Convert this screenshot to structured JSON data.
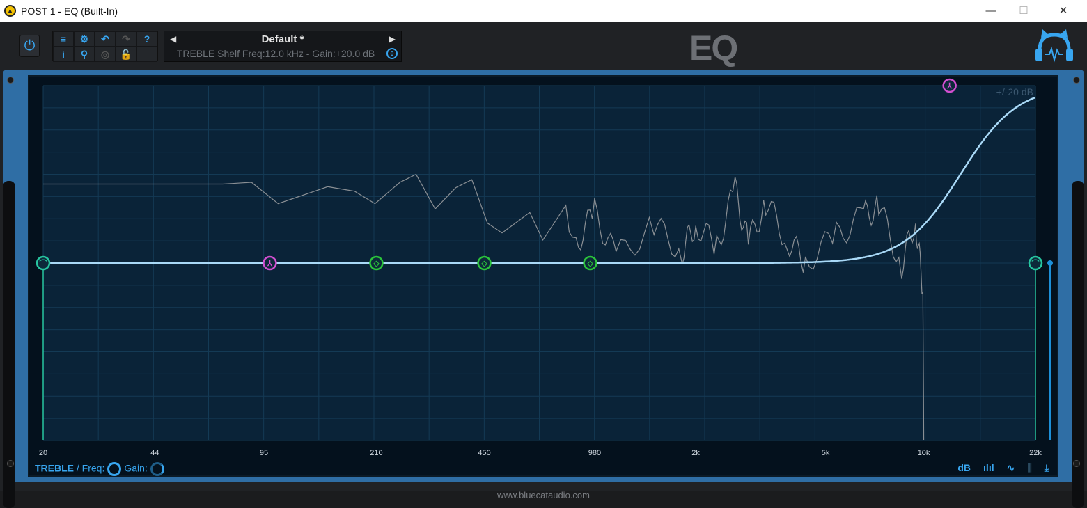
{
  "window": {
    "title": "POST 1 - EQ (Built-In)",
    "minimize": "—",
    "maximize": "☐",
    "close": "✕"
  },
  "toolbar": {
    "power_icon": "power-icon",
    "buttons": [
      {
        "name": "menu-icon",
        "glyph": "≡"
      },
      {
        "name": "settings-gear-icon",
        "glyph": "⚙"
      },
      {
        "name": "undo-icon",
        "glyph": "↶"
      },
      {
        "name": "redo-icon",
        "glyph": "↷"
      },
      {
        "name": "help-icon",
        "glyph": "?"
      },
      {
        "name": "info-icon",
        "glyph": "i"
      },
      {
        "name": "zoom-search-icon",
        "glyph": "⚲"
      },
      {
        "name": "target-icon",
        "glyph": "◎"
      },
      {
        "name": "lock-icon",
        "glyph": "🔓"
      },
      {
        "name": "empty",
        "glyph": ""
      }
    ]
  },
  "preset": {
    "name": "Default *",
    "prev": "◀",
    "next": "▶",
    "info": "TREBLE Shelf Freq:12.0 kHz - Gain:+20.0 dB",
    "info_icon": "0"
  },
  "logo": {
    "text": "EQ"
  },
  "graph": {
    "db_range_label": "+/-20 dB",
    "db_range": 20,
    "freq_range": [
      20,
      22000
    ],
    "x_ticks": [
      "20",
      "44",
      "95",
      "210",
      "450",
      "980",
      "2k",
      "5k",
      "10k",
      "22k"
    ],
    "x_tick_values": [
      20,
      44,
      95,
      210,
      450,
      980,
      2000,
      5000,
      10000,
      22000
    ],
    "colors": {
      "curve": "#a9d9f7",
      "spectrum": "#8a8f94",
      "lowcut": "#27c6a0",
      "bell_magenta": "#d24fd0",
      "bell_green": "#2bc43b",
      "grid": "#143a55"
    },
    "bands": [
      {
        "name": "lowcut",
        "freq": 20,
        "gain": 0,
        "color": "#27c6a0"
      },
      {
        "name": "bass",
        "freq": 99,
        "gain": 0,
        "color": "#d24fd0"
      },
      {
        "name": "band-2",
        "freq": 210,
        "gain": 0,
        "color": "#2bc43b"
      },
      {
        "name": "band-3",
        "freq": 450,
        "gain": 0,
        "color": "#2bc43b"
      },
      {
        "name": "band-4",
        "freq": 950,
        "gain": 0,
        "color": "#2bc43b"
      },
      {
        "name": "treble",
        "freq": 12000,
        "gain": 20,
        "color": "#d24fd0"
      },
      {
        "name": "highcut",
        "freq": 22000,
        "gain": 0,
        "color": "#27c6a0"
      }
    ],
    "spectrum": [
      [
        20,
        8.9
      ],
      [
        71,
        8.9
      ],
      [
        87,
        9.1
      ],
      [
        105,
        6.7
      ],
      [
        149,
        8.6
      ],
      [
        180,
        8.1
      ],
      [
        208,
        6.7
      ],
      [
        248,
        9.1
      ],
      [
        278,
        10
      ],
      [
        318,
        6.1
      ],
      [
        368,
        8.5
      ],
      [
        412,
        9.4
      ],
      [
        460,
        4.5
      ],
      [
        510,
        3.4
      ],
      [
        620,
        5.7
      ],
      [
        680,
        2.6
      ],
      [
        800,
        6.5
      ],
      [
        860,
        2.2
      ],
      [
        980,
        5.7
      ],
      [
        1140,
        0.6
      ],
      [
        1490,
        4.2
      ],
      [
        1820,
        1.4
      ],
      [
        2000,
        4.5
      ],
      [
        2320,
        1.8
      ],
      [
        2640,
        8.3
      ],
      [
        2900,
        2.2
      ],
      [
        3280,
        6.9
      ],
      [
        3820,
        2.6
      ],
      [
        4340,
        0.2
      ],
      [
        5400,
        3
      ],
      [
        6540,
        5.3
      ],
      [
        7280,
        6.3
      ],
      [
        8560,
        -0.2
      ],
      [
        9440,
        4.9
      ],
      [
        9940,
        -3.3
      ],
      [
        10000,
        -20
      ]
    ]
  },
  "bottom": {
    "band": "TREBLE",
    "sep": " / Freq:",
    "gain": "Gain:",
    "buttons": [
      "dB",
      "ılıl",
      "∿",
      "⫼",
      "⤓"
    ]
  },
  "footer": "www.bluecataudio.com"
}
